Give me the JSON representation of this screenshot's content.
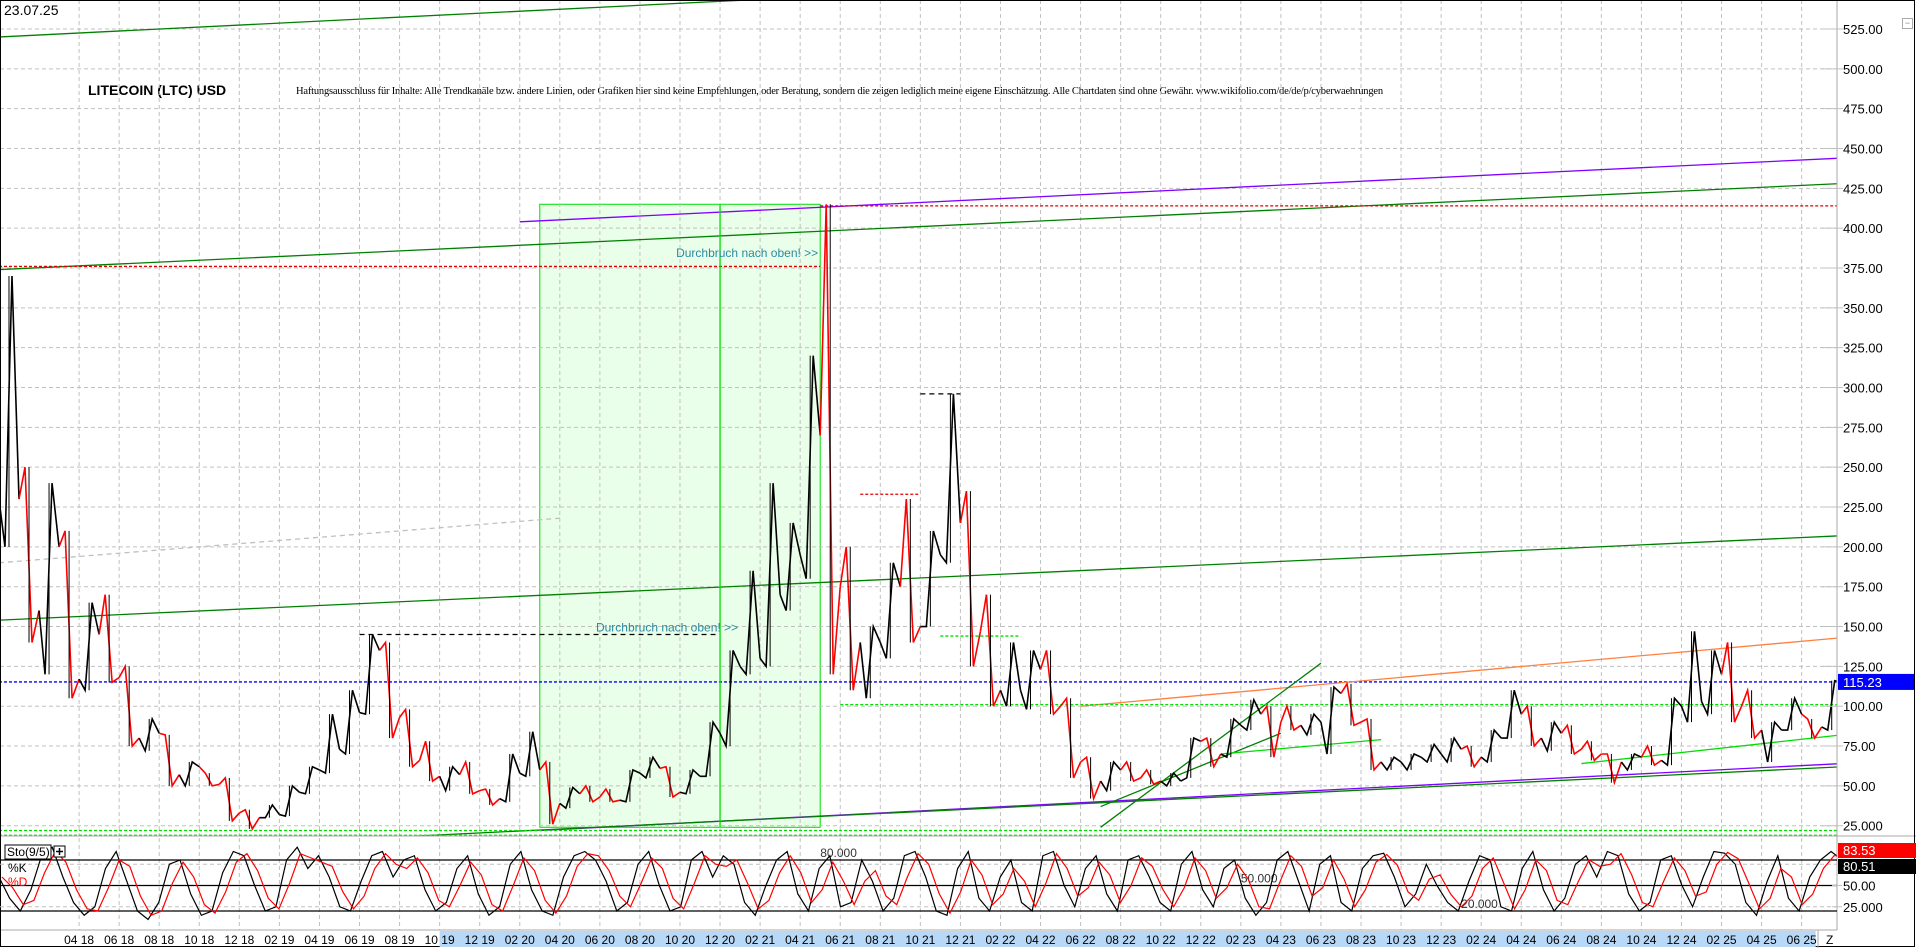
{
  "header": {
    "date": "23.07.25",
    "title": "LITECOIN (LTC) USD",
    "disclaimer": "Haftungsausschluss für Inhalte: Alle Trendkanäle bzw. andere Linien, oder Grafiken hier sind keine Empfehlungen, oder Beratung, sondern die zeigen lediglich meine eigene Einschätzung. Alle Chartdaten sind ohne Gewähr.  www.wikifolio.com/de/de/p/cyberwaehrungen"
  },
  "colors": {
    "up_bar": "#000000",
    "down_bar": "#ff0000",
    "grid": "#c0c0c0",
    "trend_green": "#008000",
    "trend_lime": "#00dd00",
    "trend_purple": "#8000ff",
    "trend_orange": "#ff8040",
    "price_line": "#0000ff",
    "annotation_text": "#2a8aa0",
    "box_fill": "#eaffea",
    "k_line": "#000000",
    "d_line": "#ff0000"
  },
  "chart_data": [
    {
      "type": "ohlc",
      "title": "LITECOIN (LTC) USD",
      "ylim": [
        14,
        535
      ],
      "y_ticks": [
        "525.00",
        "500.00",
        "475.00",
        "450.00",
        "425.00",
        "400.00",
        "375.00",
        "350.00",
        "325.00",
        "300.00",
        "275.00",
        "250.00",
        "225.00",
        "200.00",
        "175.00",
        "150.00",
        "125.00",
        "100.00",
        "75.00",
        "50.00",
        "25.000"
      ],
      "current_price": "115.23",
      "start_month": "2017-12",
      "high": [
        370,
        250,
        240,
        210,
        165,
        170,
        125,
        92,
        82,
        65,
        58,
        55,
        35,
        38,
        50,
        62,
        95,
        110,
        145,
        140,
        98,
        78,
        62,
        65,
        48,
        70,
        84,
        65,
        49,
        50,
        48,
        60,
        68,
        62,
        60,
        90,
        135,
        185,
        240,
        215,
        320,
        415,
        200,
        150,
        190,
        230,
        210,
        296,
        235,
        170,
        140,
        135,
        135,
        105,
        68,
        65,
        65,
        60,
        58,
        80,
        80,
        92,
        104,
        100,
        100,
        95,
        112,
        114,
        92,
        68,
        70,
        76,
        80,
        75,
        85,
        110,
        100,
        90,
        88,
        78,
        70,
        70,
        75,
        105,
        147,
        135,
        140,
        110,
        90,
        105,
        92,
        116
      ],
      "low": [
        200,
        140,
        120,
        105,
        110,
        115,
        75,
        72,
        50,
        50,
        50,
        28,
        23,
        30,
        31,
        45,
        58,
        70,
        95,
        80,
        62,
        53,
        47,
        45,
        38,
        40,
        56,
        26,
        36,
        40,
        40,
        40,
        55,
        43,
        45,
        56,
        75,
        120,
        125,
        160,
        180,
        120,
        110,
        105,
        130,
        140,
        150,
        190,
        125,
        100,
        100,
        98,
        95,
        55,
        42,
        47,
        53,
        51,
        50,
        55,
        62,
        68,
        85,
        68,
        85,
        82,
        70,
        88,
        60,
        60,
        60,
        65,
        65,
        62,
        65,
        80,
        75,
        72,
        70,
        66,
        52,
        60,
        63,
        63,
        90,
        95,
        90,
        80,
        65,
        85,
        80,
        85
      ],
      "close": [
        230,
        160,
        200,
        117,
        145,
        118,
        80,
        83,
        57,
        62,
        51,
        33,
        30,
        32,
        46,
        60,
        73,
        96,
        135,
        93,
        66,
        56,
        57,
        47,
        42,
        58,
        60,
        39,
        45,
        43,
        41,
        58,
        61,
        46,
        56,
        83,
        125,
        130,
        170,
        195,
        270,
        175,
        140,
        140,
        175,
        150,
        195,
        215,
        147,
        110,
        110,
        123,
        100,
        65,
        53,
        60,
        55,
        53,
        53,
        78,
        70,
        88,
        95,
        90,
        88,
        90,
        108,
        90,
        65,
        65,
        68,
        70,
        73,
        68,
        80,
        95,
        80,
        83,
        73,
        70,
        65,
        68,
        66,
        100,
        103,
        120,
        100,
        85,
        85,
        95,
        87,
        115
      ],
      "annotations": {
        "lines": [
          {
            "from": [
              "2017-12",
              520
            ],
            "to": [
              "2021-01",
              543
            ],
            "color": "#008000",
            "style": "solid"
          },
          {
            "from": [
              "2017-12",
              374
            ],
            "to": [
              "2025-08",
              428
            ],
            "color": "#008000",
            "style": "solid"
          },
          {
            "from": [
              "2020-02",
              404
            ],
            "to": [
              "2025-08",
              444
            ],
            "color": "#8000ff",
            "style": "solid"
          },
          {
            "from": [
              "2021-05",
              414
            ],
            "to": [
              "2025-08",
              414
            ],
            "color": "#e00000",
            "style": "dotted"
          },
          {
            "from": [
              "2017-12",
              376
            ],
            "to": [
              "2021-05",
              376
            ],
            "color": "#e00000",
            "style": "dotted"
          },
          {
            "from": [
              "2017-12",
              154
            ],
            "to": [
              "2025-08",
              207
            ],
            "color": "#008000",
            "style": "solid"
          },
          {
            "from": [
              "2017-12",
              190
            ],
            "to": [
              "2020-04",
              218
            ],
            "color": "#c0c0c0",
            "style": "dashed"
          },
          {
            "from": [
              "2017-12",
              115.23
            ],
            "to": [
              "2025-08",
              115.23
            ],
            "color": "#0000ff",
            "style": "dotted"
          },
          {
            "from": [
              "2020-03",
              22
            ],
            "to": [
              "2025-08",
              64
            ],
            "color": "#8000ff",
            "style": "solid"
          },
          {
            "from": [
              "2019-08",
              18
            ],
            "to": [
              "2025-08",
              62
            ],
            "color": "#008000",
            "style": "solid"
          },
          {
            "from": [
              "2022-06",
              100
            ],
            "to": [
              "2025-08",
              143
            ],
            "color": "#ff8040",
            "style": "solid"
          },
          {
            "from": [
              "2022-07",
              24
            ],
            "to": [
              "2023-06",
              127
            ],
            "color": "#008000",
            "style": "solid"
          },
          {
            "from": [
              "2022-07",
              37
            ],
            "to": [
              "2023-04",
              83
            ],
            "color": "#008000",
            "style": "solid"
          },
          {
            "from": [
              "2023-01",
              70
            ],
            "to": [
              "2023-09",
              79
            ],
            "color": "#00dd00",
            "style": "solid"
          },
          {
            "from": [
              "2024-07",
              64
            ],
            "to": [
              "2025-08",
              82
            ],
            "color": "#00dd00",
            "style": "solid"
          },
          {
            "from": [
              "2019-06",
              145
            ],
            "to": [
              "2020-12",
              145
            ],
            "color": "#000000",
            "style": "dashed"
          },
          {
            "from": [
              "2021-10",
              296
            ],
            "to": [
              "2021-12",
              296
            ],
            "color": "#000000",
            "style": "dashed"
          },
          {
            "from": [
              "2021-07",
              233
            ],
            "to": [
              "2021-10",
              233
            ],
            "color": "#e00000",
            "style": "dotted"
          },
          {
            "from": [
              "2021-06",
              101
            ],
            "to": [
              "2025-08",
              101
            ],
            "color": "#00dd00",
            "style": "dotted"
          },
          {
            "from": [
              "2021-11",
              144
            ],
            "to": [
              "2022-03",
              144
            ],
            "color": "#00dd00",
            "style": "dotted"
          },
          {
            "from": [
              "2017-12",
              22
            ],
            "to": [
              "2025-08",
              22
            ],
            "color": "#00dd00",
            "style": "dotted"
          },
          {
            "from": [
              "2017-12",
              19
            ],
            "to": [
              "2025-08",
              19
            ],
            "color": "#00dd00",
            "style": "dotted"
          },
          {
            "from": [
              "2017-12",
              376
            ],
            "to": [
              "2017-12",
              18
            ],
            "color": "#00dd00",
            "style": "solid"
          },
          {
            "from": [
              "2020-12",
              415
            ],
            "to": [
              "2020-12",
              24
            ],
            "color": "#00dd00",
            "style": "solid"
          }
        ],
        "box": {
          "from": [
            "2020-03",
            415
          ],
          "to": [
            "2021-05",
            24
          ]
        },
        "texts": [
          {
            "text": "Durchbruch nach oben! >>",
            "at": [
              "2021-05",
              382
            ]
          },
          {
            "text": "Durchbruch nach oben! >>",
            "at": [
              "2021-01",
              147
            ]
          }
        ]
      }
    },
    {
      "type": "line",
      "title": "Sto(9/5)",
      "ylim": [
        0,
        100
      ],
      "levels": [
        80,
        50,
        20
      ],
      "level_labels": [
        "80.000",
        "50.000",
        "20.000"
      ],
      "level_label_months": [
        "2021-05",
        "2023-02",
        "2024-01"
      ],
      "y_ticks": [
        "50.00",
        "25.000"
      ],
      "last_k": "80.51",
      "last_d": "83.53",
      "series": [
        {
          "name": "%K",
          "values": [
            60,
            35,
            20,
            45,
            85,
            95,
            60,
            30,
            15,
            25,
            70,
            90,
            55,
            20,
            10,
            30,
            75,
            80,
            40,
            15,
            20,
            65,
            90,
            85,
            50,
            20,
            25,
            80,
            95,
            70,
            85,
            60,
            25,
            20,
            55,
            85,
            90,
            60,
            80,
            85,
            45,
            20,
            30,
            70,
            85,
            40,
            15,
            25,
            75,
            90,
            45,
            20,
            15,
            60,
            85,
            90,
            80,
            55,
            20,
            30,
            75,
            90,
            50,
            20,
            25,
            80,
            90,
            60,
            85,
            75,
            30,
            15,
            50,
            80,
            90,
            40,
            20,
            70,
            85,
            25,
            30,
            80,
            55,
            20,
            35,
            85,
            90,
            60,
            20,
            15,
            70,
            90,
            35,
            20,
            60,
            80,
            30,
            20,
            85,
            90,
            50,
            25,
            70,
            85,
            40,
            20,
            80,
            85,
            60,
            30,
            20,
            75,
            90,
            45,
            25,
            70,
            80,
            35,
            15,
            30,
            80,
            90,
            55,
            20,
            75,
            85,
            30,
            20,
            70,
            85,
            88,
            60,
            25,
            40,
            75,
            50,
            30,
            20,
            55,
            85,
            80,
            25,
            20,
            70,
            90,
            45,
            20,
            35,
            75,
            85,
            60,
            90,
            85,
            40,
            20,
            30,
            80,
            85,
            50,
            25,
            60,
            90,
            88,
            75,
            30,
            15,
            55,
            85,
            35,
            20,
            60,
            80,
            90,
            80.51
          ]
        },
        {
          "name": "%D"
        }
      ]
    }
  ],
  "x_axis": {
    "labels": [
      "04 18",
      "06 18",
      "08 18",
      "10 18",
      "12 18",
      "02 19",
      "04 19",
      "06 19",
      "08 19",
      "10 19",
      "12 19",
      "02 20",
      "04 20",
      "06 20",
      "08 20",
      "10 20",
      "12 20",
      "02 21",
      "04 21",
      "06 21",
      "08 21",
      "10 21",
      "12 21",
      "02 22",
      "04 22",
      "06 22",
      "08 22",
      "10 22",
      "12 22",
      "02 23",
      "04 23",
      "06 23",
      "08 23",
      "10 23",
      "12 23",
      "02 24",
      "04 24",
      "06 24",
      "08 24",
      "10 24",
      "12 24",
      "02 25",
      "04 25",
      "06 25"
    ],
    "end_label": "Z"
  }
}
